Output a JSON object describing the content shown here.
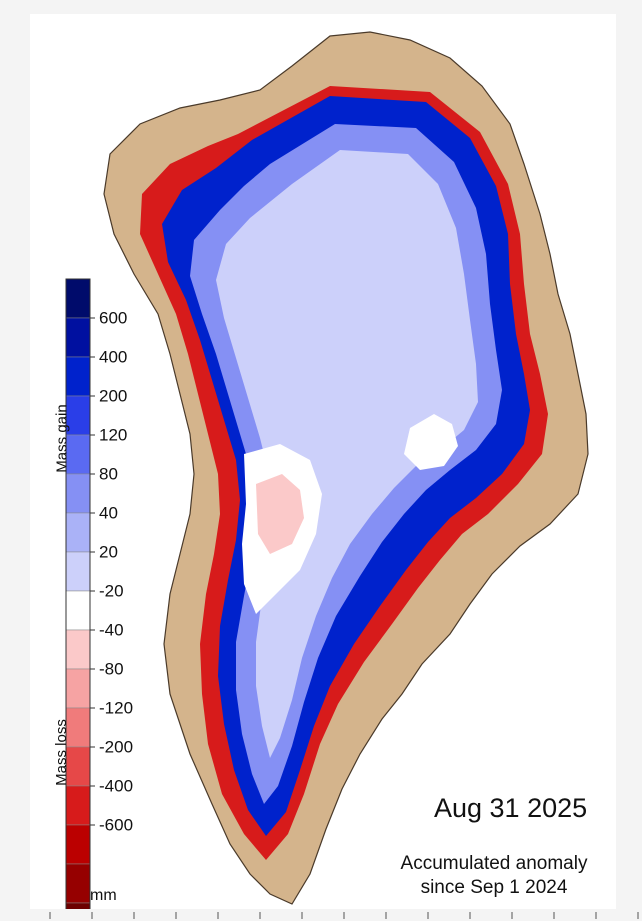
{
  "legend": {
    "gain_label": "Mass gain",
    "loss_label": "Mass loss",
    "unit": "mm",
    "tick_labels": [
      "600",
      "400",
      "200",
      "120",
      "80",
      "40",
      "20",
      "-20",
      "-40",
      "-80",
      "-120",
      "-200",
      "-400",
      "-600"
    ],
    "scale_colors": [
      "#000b6b",
      "#0010a0",
      "#0022cc",
      "#2a3ee8",
      "#5a6af2",
      "#8590f4",
      "#aab2f7",
      "#ccd0fa",
      "#ffffff",
      "#fbc9c9",
      "#f6a3a3",
      "#f07b7b",
      "#e64848",
      "#d71b1b",
      "#bb0000",
      "#960000",
      "#6d0000"
    ]
  },
  "date": "Aug 31 2025",
  "caption_line1": "Accumulated anomaly",
  "caption_line2": "since Sep 1 2024",
  "colors": {
    "land": "#d4b48c",
    "coast": "#4a3a2a",
    "interior_gain": "#ccd0fa",
    "moderate_gain": "#8590f4",
    "strong_gain": "#0022cc",
    "loss": "#d71b1b",
    "strong_loss": "#960000"
  }
}
